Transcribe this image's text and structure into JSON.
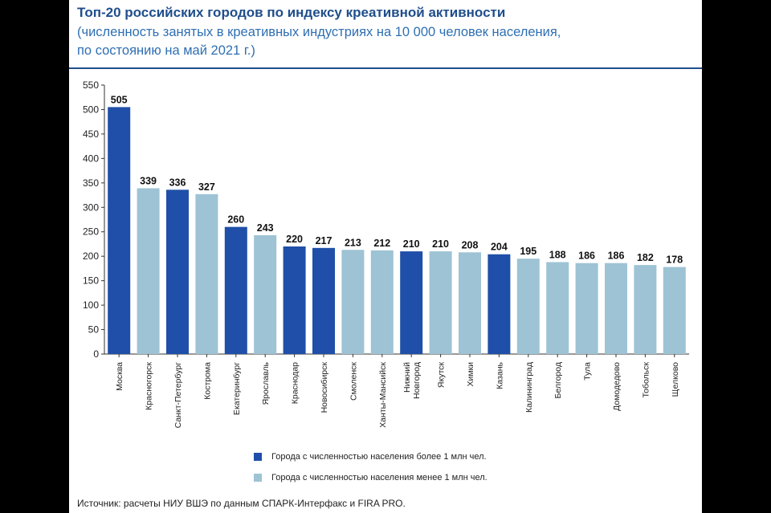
{
  "colors": {
    "large_city": "#1f4fa8",
    "small_city": "#9dc3d5",
    "title": "#1f4e8c",
    "subtitle": "#2f6fb3",
    "axis": "#333333"
  },
  "header": {
    "title": "Топ-20 российских городов по индексу креативной активности",
    "subtitle_line1": "(численность занятых в креативных индустриях на 10 000 человек населения,",
    "subtitle_line2": "по состоянию на май 2021 г.)"
  },
  "legend": {
    "large": "Города с численностью населения более 1 млн чел.",
    "small": "Города с численностью населения менее 1 млн чел."
  },
  "footer": {
    "source": "Источник: расчеты НИУ ВШЭ по данным СПАРК-Интерфакс и FIRA PRO."
  },
  "chart_data": {
    "type": "bar",
    "ylim": [
      0,
      550
    ],
    "yticks": [
      0,
      50,
      100,
      150,
      200,
      250,
      300,
      350,
      400,
      450,
      500,
      550
    ],
    "grid": false,
    "legend_position": "bottom-center",
    "categories": [
      "Москва",
      "Красногорск",
      "Санкт-Петербург",
      "Кострома",
      "Екатеринбург",
      "Ярославль",
      "Краснодар",
      "Новосибирск",
      "Смоленск",
      "Ханты-Мансийск",
      "Нижний Новгород",
      "Якутск",
      "Химки",
      "Казань",
      "Калининград",
      "Белгород",
      "Тула",
      "Домодедово",
      "Тобольск",
      "Щелково"
    ],
    "values": [
      505,
      339,
      336,
      327,
      260,
      243,
      220,
      217,
      213,
      212,
      210,
      210,
      208,
      204,
      195,
      188,
      186,
      186,
      182,
      178
    ],
    "group": [
      "large",
      "small",
      "large",
      "small",
      "large",
      "small",
      "large",
      "large",
      "small",
      "small",
      "large",
      "small",
      "small",
      "large",
      "small",
      "small",
      "small",
      "small",
      "small",
      "small"
    ]
  }
}
